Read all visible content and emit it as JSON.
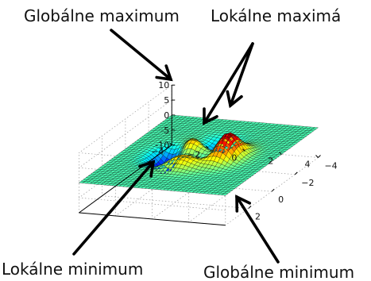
{
  "chart_data": {
    "type": "surface",
    "function": "peaks",
    "description": "3D surface plot of a function with one global maximum, two local maxima, one local minimum and one global minimum",
    "x_ticks": [
      -4,
      -2,
      0,
      2
    ],
    "y_ticks": [
      4,
      2,
      0,
      -2,
      -4
    ],
    "z_ticks": [
      10,
      5,
      0,
      -5,
      -10
    ],
    "xlim": [
      -4,
      4
    ],
    "ylim": [
      -4,
      4
    ],
    "zlim": [
      -10,
      10
    ],
    "grid": true,
    "colormap": "jet",
    "annotations": [
      {
        "key": "global_max",
        "label": "Globálne maximum"
      },
      {
        "key": "local_max",
        "label": "Lokálne maximá"
      },
      {
        "key": "local_min",
        "label": "Lokálne minimum"
      },
      {
        "key": "global_min",
        "label": "Globálne minimum"
      }
    ]
  }
}
